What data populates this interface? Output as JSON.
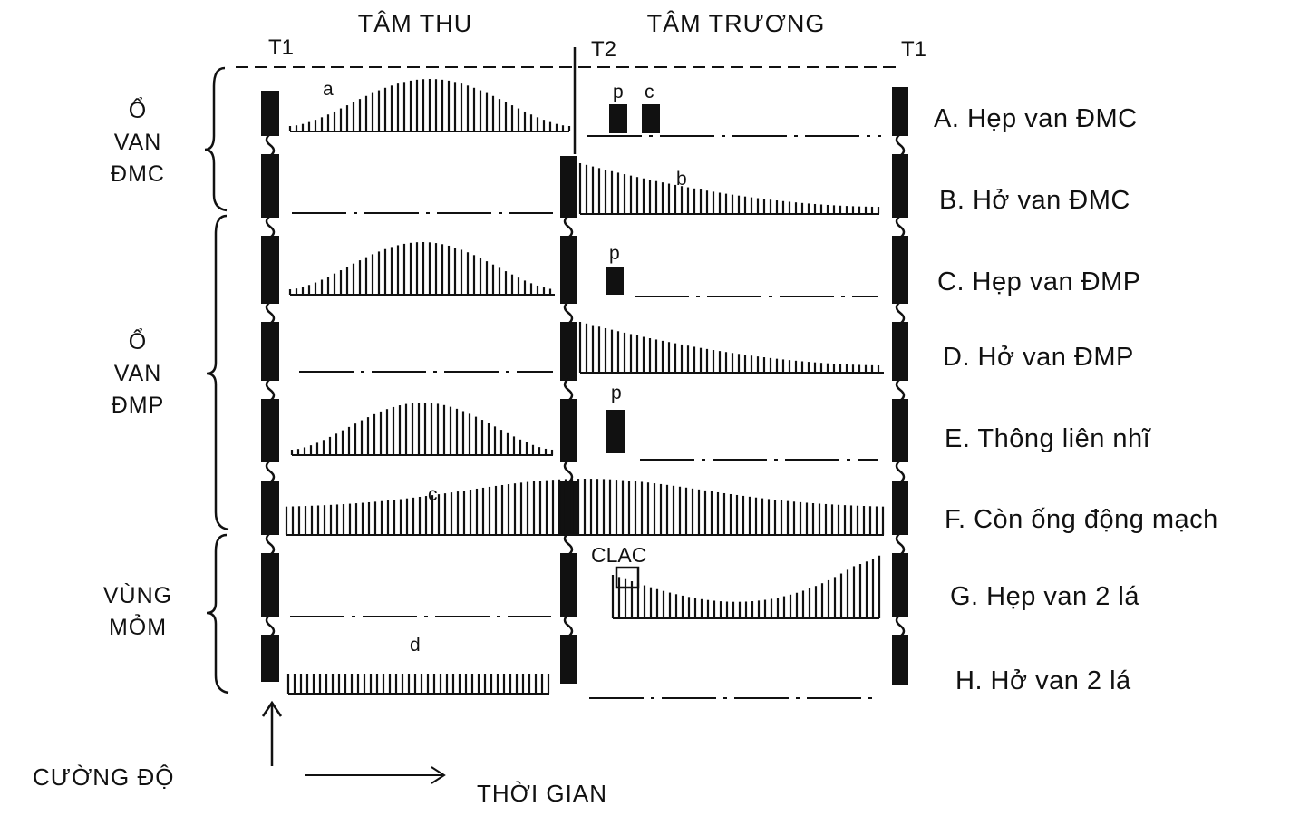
{
  "header": {
    "systole": "TÂM THU",
    "diastole": "TÂM TRƯƠNG",
    "t1_left": "T1",
    "t2": "T2",
    "t1_right": "T1"
  },
  "groups": [
    {
      "lines": [
        "Ổ",
        "VAN",
        "ĐMC"
      ]
    },
    {
      "lines": [
        "Ổ",
        "VAN",
        "ĐMP"
      ]
    },
    {
      "lines": [
        "VÙNG",
        "MỎM"
      ]
    }
  ],
  "rows": [
    {
      "label": "A. Hẹp van ĐMC"
    },
    {
      "label": "B. Hở van ĐMC"
    },
    {
      "label": "C. Hẹp van ĐMP"
    },
    {
      "label": "D. Hở van ĐMP"
    },
    {
      "label": "E. Thông liên nhĩ"
    },
    {
      "label": "F. Còn ống động mạch"
    },
    {
      "label": "G. Hẹp van 2 lá"
    },
    {
      "label": "H. Hở van 2 lá"
    }
  ],
  "annotations": {
    "a": "a",
    "b": "b",
    "c_row_a": "c",
    "c_row_f": "c",
    "d": "d",
    "p_row_a": "p",
    "p_row_c": "p",
    "p_row_e": "p",
    "clac": "CLAC"
  },
  "axes": {
    "intensity": "CƯỜNG ĐỘ",
    "time": "THỜI GIAN"
  }
}
